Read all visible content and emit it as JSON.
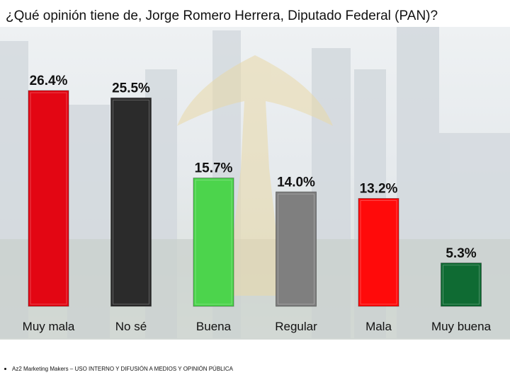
{
  "title": "¿Qué opinión tiene de, Jorge Romero Herrera, Diputado Federal (PAN)?",
  "footer": "Az2 Marketing Makers – USO INTERNO Y DIFUSIÓN A MEDIOS Y OPINIÓN PÚBLICA",
  "chart_data": {
    "type": "bar",
    "title": "¿Qué opinión tiene de, Jorge Romero Herrera, Diputado Federal (PAN)?",
    "categories": [
      "Muy mala",
      "No sé",
      "Buena",
      "Regular",
      "Mala",
      "Muy buena"
    ],
    "values": [
      26.4,
      25.5,
      15.7,
      14.0,
      13.2,
      5.3
    ],
    "labels": [
      "26.4%",
      "25.5%",
      "15.7%",
      "14.0%",
      "13.2%",
      "5.3%"
    ],
    "colors": [
      "#e30613",
      "#2b2b2b",
      "#4cd44c",
      "#7f7f7f",
      "#ff0a0a",
      "#0f6b33"
    ],
    "xlabel": "",
    "ylabel": "",
    "ylim": [
      0,
      26.4
    ],
    "grid": false,
    "legend": "none"
  }
}
